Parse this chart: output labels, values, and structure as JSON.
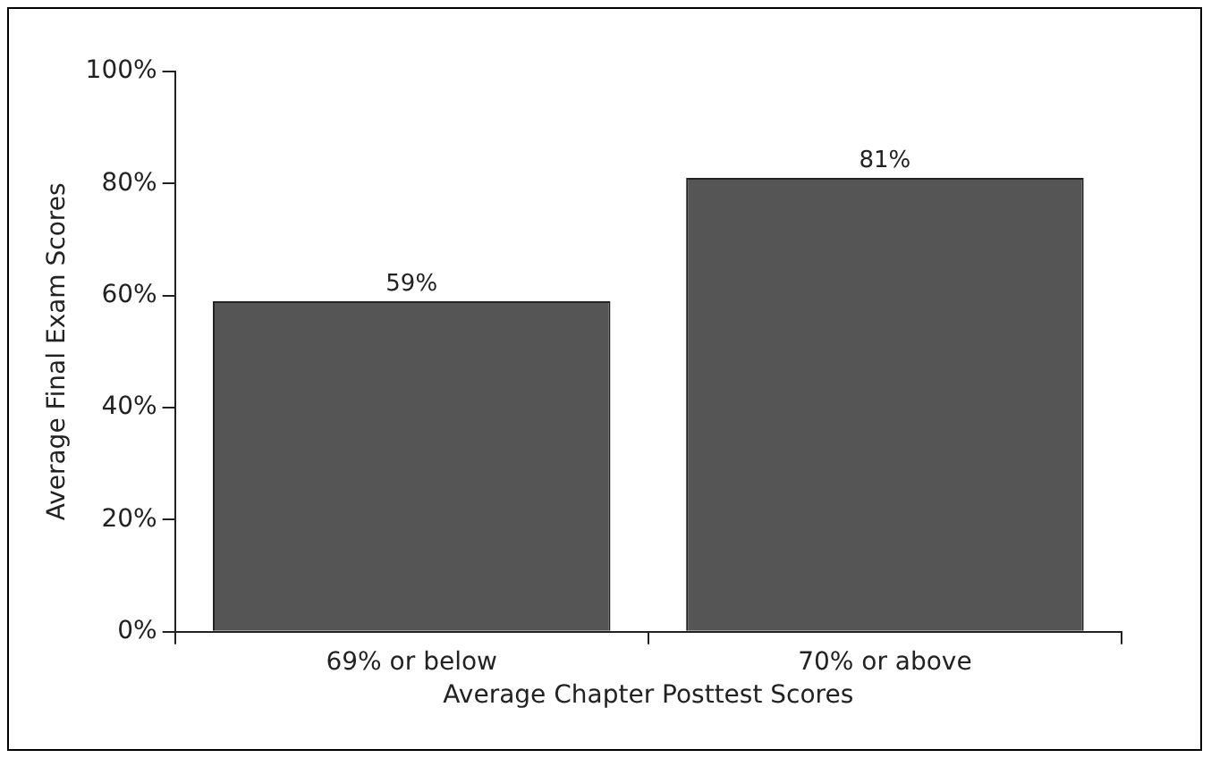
{
  "chart_data": {
    "type": "bar",
    "xlabel": "Average Chapter Posttest Scores",
    "ylabel": "Average Final Exam Scores",
    "categories": [
      "69% or below",
      "70% or above"
    ],
    "values": [
      59,
      81
    ],
    "color": "#555555",
    "value_labels": [
      "59%",
      "81%"
    ],
    "ylim": [
      0,
      100
    ],
    "yticks": [
      {
        "value": 0,
        "label": "0%"
      },
      {
        "value": 20,
        "label": "20%"
      },
      {
        "value": 40,
        "label": "40%"
      },
      {
        "value": 60,
        "label": "60%"
      },
      {
        "value": 80,
        "label": "80%"
      },
      {
        "value": 100,
        "label": "100%"
      }
    ],
    "grid": false,
    "legend": false
  }
}
